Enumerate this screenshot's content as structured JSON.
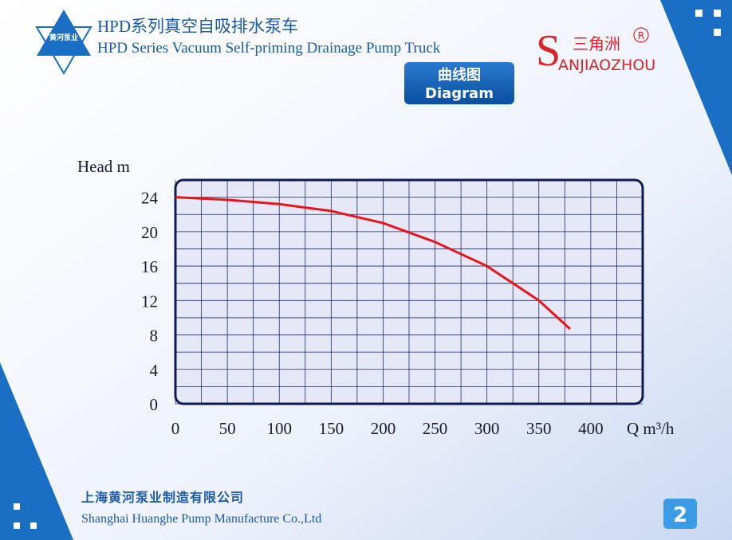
{
  "header": {
    "logo_text": "黄河泵业",
    "title_zh": "HPD系列真空自吸排水泵车",
    "title_en": "HPD Series Vacuum Self-priming Drainage Pump Truck",
    "brand_zh": "三角洲",
    "brand_initial": "S",
    "brand_en": "ANJIAOZHOU",
    "brand_mark": "R"
  },
  "button": {
    "label_zh": "曲线图",
    "label_en": "Diagram"
  },
  "chart_data": {
    "type": "line",
    "ylabel": "Head m",
    "xlabel": "Q m³/h",
    "x": [
      0,
      50,
      100,
      150,
      200,
      250,
      300,
      350,
      380
    ],
    "series": [
      {
        "color": "#e8141c",
        "values": [
          24,
          23.7,
          23.2,
          22.4,
          21,
          18.8,
          16,
          12,
          8.7
        ]
      }
    ],
    "xlim": [
      0,
      450
    ],
    "ylim": [
      0,
      26
    ],
    "xticks": [
      0,
      50,
      100,
      150,
      200,
      250,
      300,
      350,
      400
    ],
    "yticks": [
      0,
      4,
      8,
      12,
      16,
      20,
      24
    ],
    "xminorticks": [
      25,
      75,
      125,
      175,
      225,
      275,
      325,
      375,
      425
    ],
    "yminorticks": [
      2,
      6,
      10,
      14,
      18,
      22
    ],
    "grid": true
  },
  "footer": {
    "company_zh": "上海黄河泵业制造有限公司",
    "company_en": "Shanghai Huanghe Pump Manufacture Co.,Ltd",
    "page": "2"
  }
}
